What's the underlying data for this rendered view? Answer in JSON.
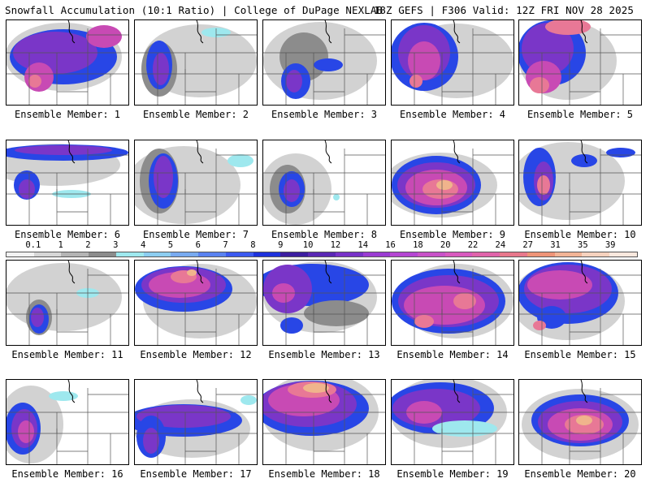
{
  "header": {
    "left_title": "Snowfall Accumulation (10:1 Ratio) | College of DuPage NEXLAB",
    "right_title": "18Z GEFS | F306 Valid: 12Z FRI NOV 28 2025"
  },
  "members": [
    {
      "label": "Ensemble Member: 1"
    },
    {
      "label": "Ensemble Member: 2"
    },
    {
      "label": "Ensemble Member: 3"
    },
    {
      "label": "Ensemble Member: 4"
    },
    {
      "label": "Ensemble Member: 5"
    },
    {
      "label": "Ensemble Member: 6"
    },
    {
      "label": "Ensemble Member: 7"
    },
    {
      "label": "Ensemble Member: 8"
    },
    {
      "label": "Ensemble Member: 9"
    },
    {
      "label": "Ensemble Member: 10"
    },
    {
      "label": "Ensemble Member: 11"
    },
    {
      "label": "Ensemble Member: 12"
    },
    {
      "label": "Ensemble Member: 13"
    },
    {
      "label": "Ensemble Member: 14"
    },
    {
      "label": "Ensemble Member: 15"
    },
    {
      "label": "Ensemble Member: 16"
    },
    {
      "label": "Ensemble Member: 17"
    },
    {
      "label": "Ensemble Member: 18"
    },
    {
      "label": "Ensemble Member: 19"
    },
    {
      "label": "Ensemble Member: 20"
    }
  ],
  "colorbar": {
    "ticks": [
      "0.1",
      "1",
      "2",
      "3",
      "4",
      "5",
      "6",
      "7",
      "8",
      "9",
      "10",
      "12",
      "14",
      "16",
      "18",
      "20",
      "22",
      "24",
      "27",
      "31",
      "35",
      "39"
    ],
    "colors": [
      "#f2f2f2",
      "#d6d6d6",
      "#b4b4b4",
      "#8c8c8c",
      "#9ee8ee",
      "#8ccdf0",
      "#78aaf0",
      "#5a82f0",
      "#3c5af0",
      "#1e32dc",
      "#3c1ea0",
      "#5a28b4",
      "#7832c8",
      "#9a3cd2",
      "#b446d2",
      "#c852c8",
      "#d85abe",
      "#e064aa",
      "#e8788c",
      "#ee9478",
      "#f2b496",
      "#f6d2be",
      "#fae8de"
    ]
  },
  "palette": {
    "light_gray": "#d2d2d2",
    "dark_gray": "#8c8c8c",
    "cyan": "#9ee8ee",
    "blue": "#2846e6",
    "purple": "#7a36c8",
    "magenta": "#c84ab4",
    "pink": "#e87896",
    "peach": "#f0b48c",
    "border": "#000000"
  }
}
